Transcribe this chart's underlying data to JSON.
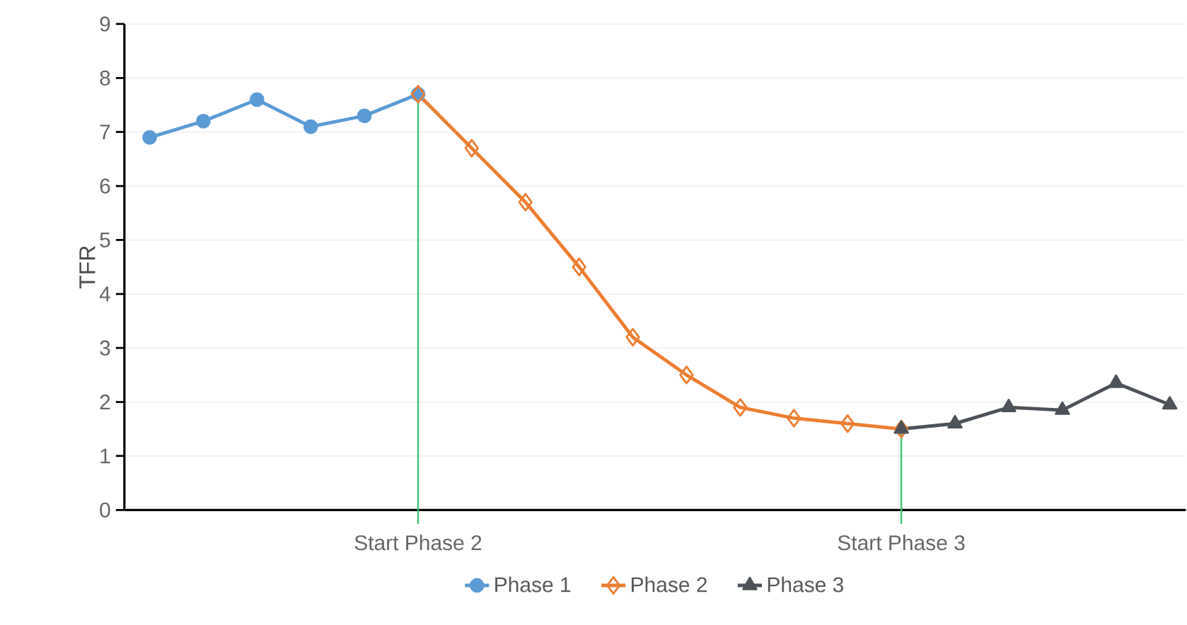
{
  "chart_data": {
    "type": "line",
    "ylabel": "TFR",
    "categories": [
      null,
      null,
      null,
      null,
      null,
      "Start Phase 2",
      null,
      null,
      null,
      null,
      null,
      null,
      null,
      null,
      "Start Phase 3",
      null,
      null,
      null,
      null,
      null
    ],
    "series": [
      {
        "name": "Phase 1",
        "color": "#5b9bd5",
        "marker": "circle",
        "values": [
          6.9,
          7.2,
          7.6,
          7.1,
          7.3,
          7.7,
          null,
          null,
          null,
          null,
          null,
          null,
          null,
          null,
          null,
          null,
          null,
          null,
          null,
          null
        ]
      },
      {
        "name": "Phase 2",
        "color": "#ed7d31",
        "marker": "diamond",
        "values": [
          null,
          null,
          null,
          null,
          null,
          7.7,
          6.7,
          5.7,
          4.5,
          3.2,
          2.5,
          1.9,
          1.7,
          1.6,
          1.5,
          null,
          null,
          null,
          null,
          null
        ]
      },
      {
        "name": "Phase 3",
        "color": "#4d5258",
        "marker": "triangle",
        "values": [
          null,
          null,
          null,
          null,
          null,
          null,
          null,
          null,
          null,
          null,
          null,
          null,
          null,
          null,
          1.5,
          1.6,
          1.9,
          1.85,
          2.35,
          1.95
        ]
      }
    ],
    "ylim": [
      0,
      9
    ],
    "yticks": [
      0,
      1,
      2,
      3,
      4,
      5,
      6,
      7,
      8,
      9
    ],
    "grid": "y",
    "legend": "bottom",
    "line_style": "solid",
    "ref_lines": [
      {
        "axis": "x",
        "value": "Start Phase 2",
        "color": "#3cc878"
      },
      {
        "axis": "x",
        "value": "Start Phase 3",
        "color": "#3cc878"
      }
    ]
  }
}
